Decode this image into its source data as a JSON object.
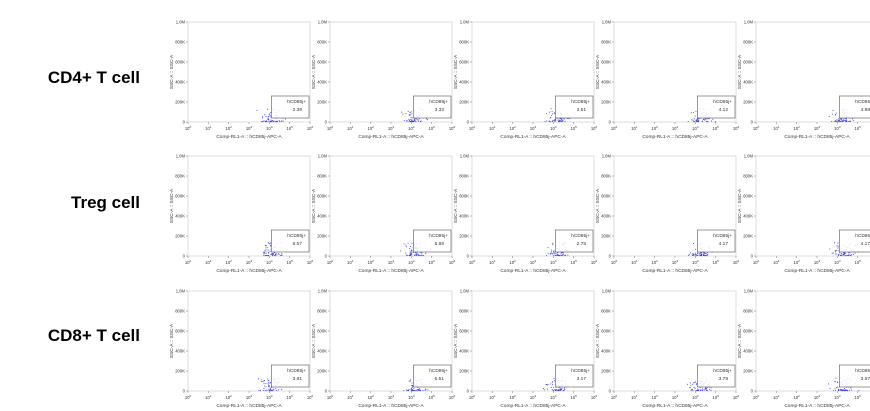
{
  "rows": [
    {
      "label": "CD4+ T cell"
    },
    {
      "label": "Treg cell"
    },
    {
      "label": "CD8+ T cell"
    }
  ],
  "colors": {
    "dots": "#3a3ad8",
    "axis": "#888888",
    "gate": "#555555"
  },
  "chart_data": {
    "type": "scatter",
    "xlabel": "Comp-RL1-A :: hCD85j-APC-A",
    "ylabel": "SSC-A :: SSC-A",
    "x_scale": "log",
    "xlim": [
      1,
      1000000
    ],
    "x_tick_labels": [
      "10^0",
      "10^1",
      "10^2",
      "10^3",
      "10^4",
      "10^5",
      "10^6"
    ],
    "ylim": [
      0,
      1000000
    ],
    "y_ticks": [
      0,
      200000,
      400000,
      600000,
      800000,
      1000000
    ],
    "y_tick_labels": [
      "0",
      "200K",
      "400K",
      "600K",
      "800K",
      "1.0M"
    ],
    "gate_label": "hCD85j+",
    "panels": [
      {
        "row": "CD4+ T cell",
        "col": 1,
        "gate_value": "2.39"
      },
      {
        "row": "CD4+ T cell",
        "col": 2,
        "gate_value": "3.33"
      },
      {
        "row": "CD4+ T cell",
        "col": 3,
        "gate_value": "3.51"
      },
      {
        "row": "CD4+ T cell",
        "col": 4,
        "gate_value": "4.12"
      },
      {
        "row": "CD4+ T cell",
        "col": 5,
        "gate_value": "4.98"
      },
      {
        "row": "Treg cell",
        "col": 1,
        "gate_value": "8.57"
      },
      {
        "row": "Treg cell",
        "col": 2,
        "gate_value": "5.88"
      },
      {
        "row": "Treg cell",
        "col": 3,
        "gate_value": "2.78"
      },
      {
        "row": "Treg cell",
        "col": 4,
        "gate_value": "4.17"
      },
      {
        "row": "Treg cell",
        "col": 5,
        "gate_value": "4.17"
      },
      {
        "row": "CD8+ T cell",
        "col": 1,
        "gate_value": "3.81"
      },
      {
        "row": "CD8+ T cell",
        "col": 2,
        "gate_value": "5.51"
      },
      {
        "row": "CD8+ T cell",
        "col": 3,
        "gate_value": "3.17"
      },
      {
        "row": "CD8+ T cell",
        "col": 4,
        "gate_value": "3.79"
      },
      {
        "row": "CD8+ T cell",
        "col": 5,
        "gate_value": "3.57"
      }
    ]
  }
}
